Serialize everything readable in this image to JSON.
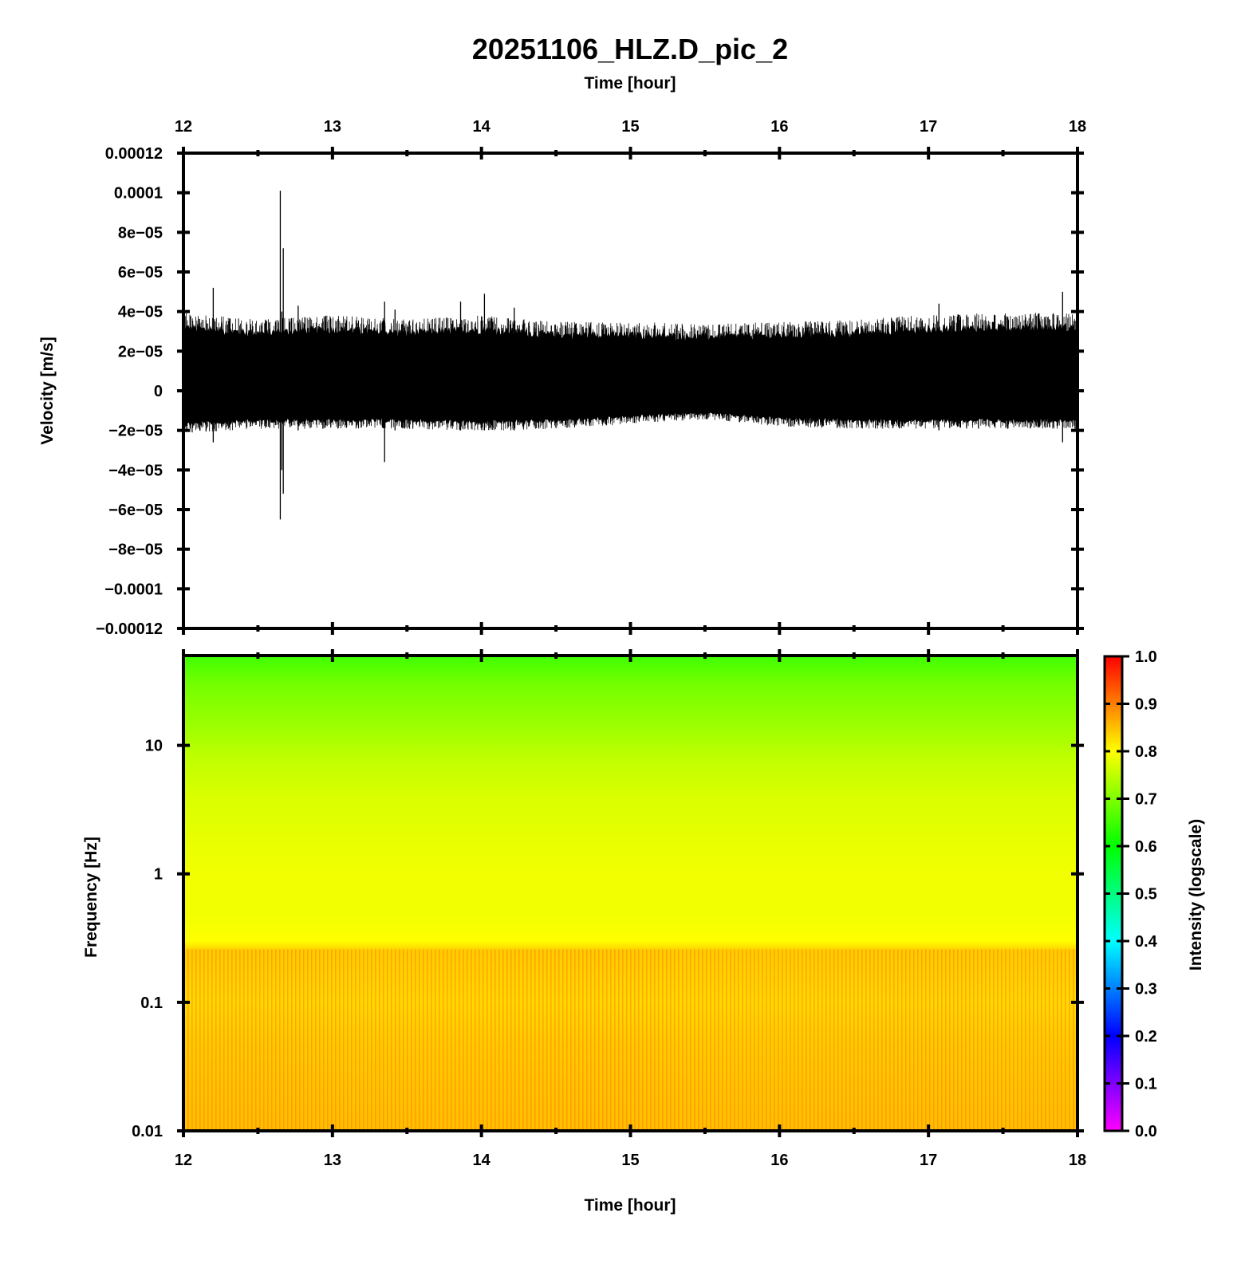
{
  "chart_data": [
    {
      "type": "line",
      "title": "20251106_HLZ.D_pic_2",
      "xlabel_top": "Time [hour]",
      "ylabel": "Velocity [m/s]",
      "xlim": [
        12,
        18
      ],
      "ylim": [
        -0.00012,
        0.00012
      ],
      "x_ticks": [
        "12",
        "13",
        "14",
        "15",
        "16",
        "17",
        "18"
      ],
      "y_ticks": [
        {
          "value": 0.00012,
          "label": "0.00012"
        },
        {
          "value": 0.0001,
          "label": "0.0001"
        },
        {
          "value": 8e-05,
          "label": "8e−05"
        },
        {
          "value": 6e-05,
          "label": "6e−05"
        },
        {
          "value": 4e-05,
          "label": "4e−05"
        },
        {
          "value": 2e-05,
          "label": "2e−05"
        },
        {
          "value": 0,
          "label": "0"
        },
        {
          "value": -2e-05,
          "label": "−2e−05"
        },
        {
          "value": -4e-05,
          "label": "−4e−05"
        },
        {
          "value": -6e-05,
          "label": "−6e−05"
        },
        {
          "value": -8e-05,
          "label": "−8e−05"
        },
        {
          "value": -0.0001,
          "label": "−0.0001"
        },
        {
          "value": -0.00012,
          "label": "−0.00012"
        }
      ],
      "envelope": {
        "x": [
          12.0,
          12.5,
          13.0,
          13.5,
          14.0,
          14.5,
          15.0,
          15.5,
          16.0,
          16.5,
          17.0,
          17.5,
          18.0
        ],
        "upper": [
          3.4e-05,
          3.1e-05,
          3.3e-05,
          3.1e-05,
          3.3e-05,
          3e-05,
          3e-05,
          2.9e-05,
          3e-05,
          3.1e-05,
          3.3e-05,
          3.4e-05,
          3.4e-05
        ],
        "lower": [
          -1.8e-05,
          -1.6e-05,
          -1.6e-05,
          -1.6e-05,
          -1.7e-05,
          -1.6e-05,
          -1.4e-05,
          -1.2e-05,
          -1.5e-05,
          -1.6e-05,
          -1.6e-05,
          -1.6e-05,
          -1.6e-05
        ]
      },
      "spikes": [
        {
          "x": 12.2,
          "max": 5.2e-05,
          "min": -2.6e-05
        },
        {
          "x": 12.65,
          "max": 0.000101,
          "min": -6.5e-05
        },
        {
          "x": 12.67,
          "max": 7.2e-05,
          "min": -5.2e-05
        },
        {
          "x": 12.66,
          "max": 4e-05,
          "min": -4e-05
        },
        {
          "x": 12.77,
          "max": 4.3e-05,
          "min": -2e-05
        },
        {
          "x": 13.35,
          "max": 4.5e-05,
          "min": -3.6e-05
        },
        {
          "x": 13.42,
          "max": 4.1e-05,
          "min": -2e-05
        },
        {
          "x": 13.86,
          "max": 4.5e-05,
          "min": -2e-05
        },
        {
          "x": 14.02,
          "max": 4.9e-05,
          "min": -2e-05
        },
        {
          "x": 14.22,
          "max": 4.2e-05,
          "min": -2e-05
        },
        {
          "x": 17.07,
          "max": 4.4e-05,
          "min": -2e-05
        },
        {
          "x": 17.9,
          "max": 5e-05,
          "min": -2.6e-05
        }
      ],
      "color": "#000000"
    },
    {
      "type": "heatmap",
      "xlabel": "Time [hour]",
      "ylabel": "Frequency [Hz]",
      "xlim": [
        12,
        18
      ],
      "ylim": [
        0.01,
        50
      ],
      "yscale": "log",
      "x_ticks": [
        "12",
        "13",
        "14",
        "15",
        "16",
        "17",
        "18"
      ],
      "y_ticks": [
        {
          "value": 10,
          "label": "10"
        },
        {
          "value": 1,
          "label": "1"
        },
        {
          "value": 0.1,
          "label": "0.1"
        },
        {
          "value": 0.01,
          "label": "0.01"
        }
      ],
      "intensity_profile": {
        "freq": [
          50,
          30,
          15,
          8,
          4,
          2,
          1,
          0.5,
          0.3,
          0.25,
          0.1,
          0.05,
          0.01
        ],
        "value": [
          0.65,
          0.69,
          0.72,
          0.75,
          0.77,
          0.78,
          0.79,
          0.79,
          0.8,
          0.84,
          0.83,
          0.84,
          0.85
        ]
      },
      "colorbar": {
        "label": "Intensity (logscale)",
        "range": [
          0,
          1
        ],
        "ticks": [
          "0.0",
          "0.1",
          "0.2",
          "0.3",
          "0.4",
          "0.5",
          "0.6",
          "0.7",
          "0.8",
          "0.9",
          "1.0"
        ],
        "colors": [
          "#ff00ff",
          "#0000ff",
          "#00ffff",
          "#00ff00",
          "#ffff00",
          "#ff0000"
        ]
      }
    }
  ]
}
